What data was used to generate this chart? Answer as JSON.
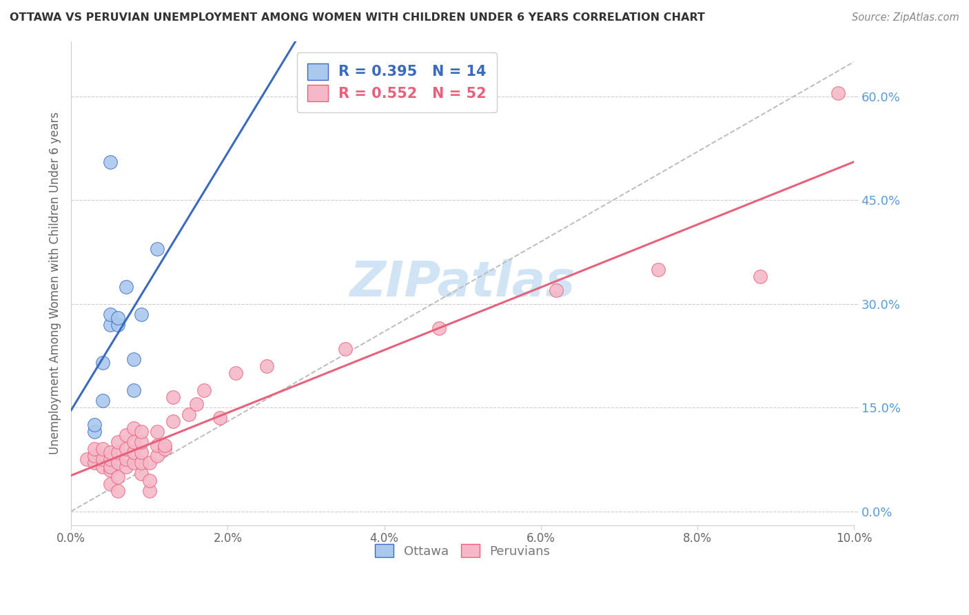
{
  "title": "OTTAWA VS PERUVIAN UNEMPLOYMENT AMONG WOMEN WITH CHILDREN UNDER 6 YEARS CORRELATION CHART",
  "source": "Source: ZipAtlas.com",
  "ylabel": "Unemployment Among Women with Children Under 6 years",
  "xlim": [
    0.0,
    0.1
  ],
  "ylim": [
    -0.02,
    0.68
  ],
  "xticks": [
    0.0,
    0.02,
    0.04,
    0.06,
    0.08,
    0.1
  ],
  "xtick_labels": [
    "0.0%",
    "2.0%",
    "4.0%",
    "6.0%",
    "8.0%",
    "10.0%"
  ],
  "yticks_right": [
    0.0,
    0.15,
    0.3,
    0.45,
    0.6
  ],
  "ytick_right_labels": [
    "0.0%",
    "15.0%",
    "30.0%",
    "45.0%",
    "60.0%"
  ],
  "background_color": "#ffffff",
  "grid_color": "#cccccc",
  "title_color": "#333333",
  "source_color": "#888888",
  "ottawa_color": "#aac8ee",
  "peruvian_color": "#f5b8c8",
  "ottawa_line_color": "#3a6abf",
  "peruvian_line_color": "#e8607a",
  "diagonal_color": "#bbbbbb",
  "legend_R_ottawa": "R = 0.395",
  "legend_N_ottawa": "N = 14",
  "legend_R_peruvian": "R = 0.552",
  "legend_N_peruvian": "N = 52",
  "ottawa_x": [
    0.003,
    0.003,
    0.004,
    0.004,
    0.005,
    0.005,
    0.006,
    0.006,
    0.007,
    0.008,
    0.008,
    0.009,
    0.011,
    0.005
  ],
  "ottawa_y": [
    0.115,
    0.125,
    0.16,
    0.215,
    0.27,
    0.285,
    0.27,
    0.28,
    0.325,
    0.175,
    0.22,
    0.285,
    0.38,
    0.505
  ],
  "peruvian_x": [
    0.002,
    0.003,
    0.003,
    0.003,
    0.004,
    0.004,
    0.004,
    0.005,
    0.005,
    0.005,
    0.005,
    0.005,
    0.006,
    0.006,
    0.006,
    0.006,
    0.006,
    0.007,
    0.007,
    0.007,
    0.007,
    0.008,
    0.008,
    0.008,
    0.008,
    0.009,
    0.009,
    0.009,
    0.009,
    0.009,
    0.01,
    0.01,
    0.01,
    0.011,
    0.011,
    0.011,
    0.012,
    0.012,
    0.013,
    0.013,
    0.015,
    0.016,
    0.017,
    0.019,
    0.021,
    0.025,
    0.035,
    0.047,
    0.062,
    0.075,
    0.088,
    0.098
  ],
  "peruvian_y": [
    0.075,
    0.07,
    0.08,
    0.09,
    0.065,
    0.075,
    0.09,
    0.04,
    0.06,
    0.065,
    0.075,
    0.085,
    0.03,
    0.05,
    0.07,
    0.085,
    0.1,
    0.065,
    0.075,
    0.09,
    0.11,
    0.07,
    0.085,
    0.1,
    0.12,
    0.055,
    0.07,
    0.085,
    0.1,
    0.115,
    0.03,
    0.045,
    0.07,
    0.08,
    0.095,
    0.115,
    0.09,
    0.095,
    0.13,
    0.165,
    0.14,
    0.155,
    0.175,
    0.135,
    0.2,
    0.21,
    0.235,
    0.265,
    0.32,
    0.35,
    0.34,
    0.605
  ],
  "watermark": "ZIPatlas",
  "watermark_color": "#d0e4f5"
}
